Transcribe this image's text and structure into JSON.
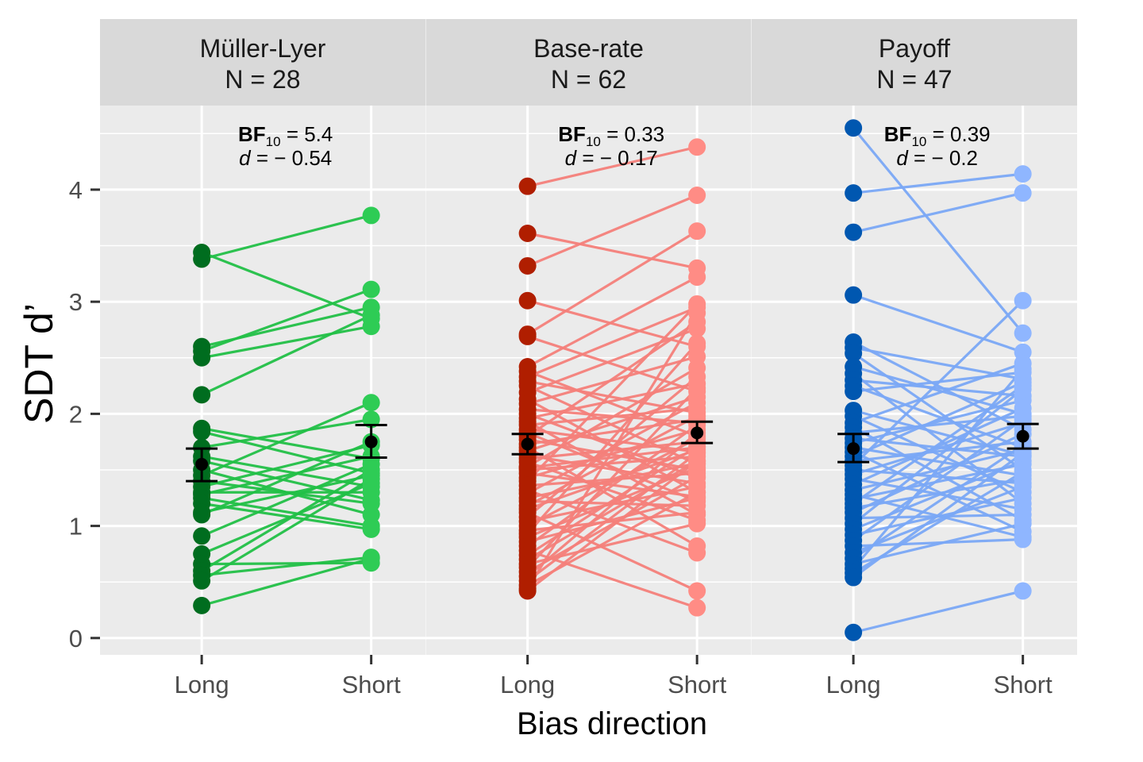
{
  "chart_data": {
    "type": "scatter",
    "subtype": "paired-points-faceted",
    "xlabel": "Bias direction",
    "ylabel": "SDT d’",
    "ylim": [
      -0.15,
      4.75
    ],
    "yticks": [
      0,
      1,
      2,
      3,
      4
    ],
    "categories": [
      "Long",
      "Short"
    ],
    "grid": true,
    "panels": [
      {
        "title": "Müller-Lyer",
        "n_label": "N = 28",
        "bf_label": "BF",
        "bf_sub": "10",
        "bf_value": " = 5.4",
        "d_label": "d",
        "d_value": " = − 0.54",
        "long_color": "#006d1f",
        "short_color": "#2ecc55",
        "line_color": "#22c047",
        "mean": [
          1.55,
          1.75
        ],
        "ci": [
          [
            1.4,
            1.69
          ],
          [
            1.61,
            1.9
          ]
        ],
        "pairs": [
          [
            3.44,
            2.85
          ],
          [
            3.38,
            3.77
          ],
          [
            2.6,
            2.95
          ],
          [
            2.56,
            3.11
          ],
          [
            2.5,
            2.78
          ],
          [
            2.17,
            2.88
          ],
          [
            1.87,
            1.6
          ],
          [
            1.84,
            1.47
          ],
          [
            1.7,
            1.95
          ],
          [
            1.62,
            1.35
          ],
          [
            1.58,
            1.23
          ],
          [
            1.5,
            1.1
          ],
          [
            1.45,
            2.1
          ],
          [
            1.4,
            1.2
          ],
          [
            1.35,
            1.72
          ],
          [
            1.3,
            1.3
          ],
          [
            1.28,
            1.62
          ],
          [
            1.25,
            1.0
          ],
          [
            1.2,
            0.97
          ],
          [
            1.12,
            1.45
          ],
          [
            1.1,
            1.75
          ],
          [
            0.91,
            1.55
          ],
          [
            0.75,
            1.38
          ],
          [
            0.66,
            0.67
          ],
          [
            0.6,
            1.5
          ],
          [
            0.56,
            0.72
          ],
          [
            0.51,
            1.42
          ],
          [
            0.29,
            0.71
          ]
        ]
      },
      {
        "title": "Base-rate",
        "n_label": "N = 62",
        "bf_label": "BF",
        "bf_sub": "10",
        "bf_value": " = 0.33",
        "d_label": "d",
        "d_value": " = − 0.17",
        "long_color": "#b01e00",
        "short_color": "#ff8c85",
        "line_color": "#f47f7a",
        "mean": [
          1.73,
          1.83
        ],
        "ci": [
          [
            1.64,
            1.82
          ],
          [
            1.74,
            1.93
          ]
        ],
        "pairs": [
          [
            4.03,
            4.38
          ],
          [
            3.61,
            3.3
          ],
          [
            3.32,
            3.95
          ],
          [
            3.01,
            2.6
          ],
          [
            2.71,
            3.63
          ],
          [
            2.69,
            2.2
          ],
          [
            2.42,
            3.22
          ],
          [
            2.38,
            1.8
          ],
          [
            2.33,
            2.95
          ],
          [
            2.29,
            2.01
          ],
          [
            2.25,
            1.55
          ],
          [
            2.19,
            2.76
          ],
          [
            2.13,
            1.3
          ],
          [
            2.09,
            2.51
          ],
          [
            2.04,
            1.92
          ],
          [
            2.0,
            1.43
          ],
          [
            1.96,
            2.27
          ],
          [
            1.93,
            1.1
          ],
          [
            1.9,
            2.05
          ],
          [
            1.86,
            1.66
          ],
          [
            1.83,
            1.22
          ],
          [
            1.8,
            2.82
          ],
          [
            1.77,
            1.5
          ],
          [
            1.73,
            1.95
          ],
          [
            1.7,
            0.82
          ],
          [
            1.67,
            2.15
          ],
          [
            1.63,
            1.38
          ],
          [
            1.6,
            1.75
          ],
          [
            1.57,
            1.05
          ],
          [
            1.53,
            2.41
          ],
          [
            1.5,
            1.62
          ],
          [
            1.47,
            1.26
          ],
          [
            1.43,
            1.86
          ],
          [
            1.4,
            2.98
          ],
          [
            1.36,
            1.47
          ],
          [
            1.32,
            0.76
          ],
          [
            1.29,
            2.1
          ],
          [
            1.25,
            1.56
          ],
          [
            1.22,
            1.18
          ],
          [
            1.18,
            1.98
          ],
          [
            1.15,
            1.68
          ],
          [
            1.12,
            0.42
          ],
          [
            1.08,
            2.33
          ],
          [
            1.04,
            1.35
          ],
          [
            1.0,
            1.78
          ],
          [
            0.96,
            1.12
          ],
          [
            0.93,
            2.63
          ],
          [
            0.9,
            1.52
          ],
          [
            0.86,
            1.25
          ],
          [
            0.82,
            1.9
          ],
          [
            0.78,
            0.27
          ],
          [
            0.74,
            1.71
          ],
          [
            0.7,
            1.58
          ],
          [
            0.66,
            1.02
          ],
          [
            0.63,
            2.23
          ],
          [
            0.59,
            1.44
          ],
          [
            0.55,
            1.83
          ],
          [
            0.51,
            1.65
          ],
          [
            0.47,
            1.3
          ],
          [
            0.44,
            2.9
          ],
          [
            0.42,
            1.58
          ],
          [
            1.52,
            1.7
          ]
        ]
      },
      {
        "title": "Payoff",
        "n_label": "N = 47",
        "bf_label": "BF",
        "bf_sub": "10",
        "bf_value": " = 0.39",
        "d_label": "d",
        "d_value": " = − 0.2",
        "long_color": "#0057b0",
        "short_color": "#8fb6ff",
        "line_color": "#7aa8f5",
        "mean": [
          1.69,
          1.8
        ],
        "ci": [
          [
            1.57,
            1.82
          ],
          [
            1.69,
            1.91
          ]
        ],
        "pairs": [
          [
            4.55,
            2.72
          ],
          [
            3.97,
            4.14
          ],
          [
            3.62,
            3.97
          ],
          [
            3.06,
            2.55
          ],
          [
            2.64,
            1.86
          ],
          [
            2.59,
            2.31
          ],
          [
            2.54,
            1.5
          ],
          [
            2.42,
            2.0
          ],
          [
            2.36,
            1.2
          ],
          [
            2.3,
            2.16
          ],
          [
            2.25,
            1.7
          ],
          [
            2.2,
            2.37
          ],
          [
            2.03,
            1.63
          ],
          [
            1.98,
            1.3
          ],
          [
            1.92,
            2.45
          ],
          [
            1.88,
            1.05
          ],
          [
            1.83,
            1.98
          ],
          [
            1.78,
            1.62
          ],
          [
            1.74,
            2.12
          ],
          [
            1.7,
            1.45
          ],
          [
            1.66,
            0.95
          ],
          [
            1.62,
            2.28
          ],
          [
            1.58,
            1.75
          ],
          [
            1.54,
            3.01
          ],
          [
            1.5,
            1.38
          ],
          [
            1.46,
            1.92
          ],
          [
            1.42,
            1.15
          ],
          [
            1.37,
            2.05
          ],
          [
            1.32,
            1.68
          ],
          [
            1.28,
            0.9
          ],
          [
            1.24,
            1.55
          ],
          [
            1.2,
            2.25
          ],
          [
            1.16,
            1.42
          ],
          [
            1.12,
            1.82
          ],
          [
            1.07,
            1.1
          ],
          [
            1.02,
            2.22
          ],
          [
            0.97,
            1.58
          ],
          [
            0.92,
            1.25
          ],
          [
            0.87,
            1.95
          ],
          [
            0.82,
            0.88
          ],
          [
            0.76,
            1.35
          ],
          [
            0.71,
            1.72
          ],
          [
            0.66,
            1.02
          ],
          [
            0.62,
            2.4
          ],
          [
            0.58,
            1.48
          ],
          [
            0.54,
            1.65
          ],
          [
            0.05,
            0.42
          ]
        ]
      }
    ]
  }
}
